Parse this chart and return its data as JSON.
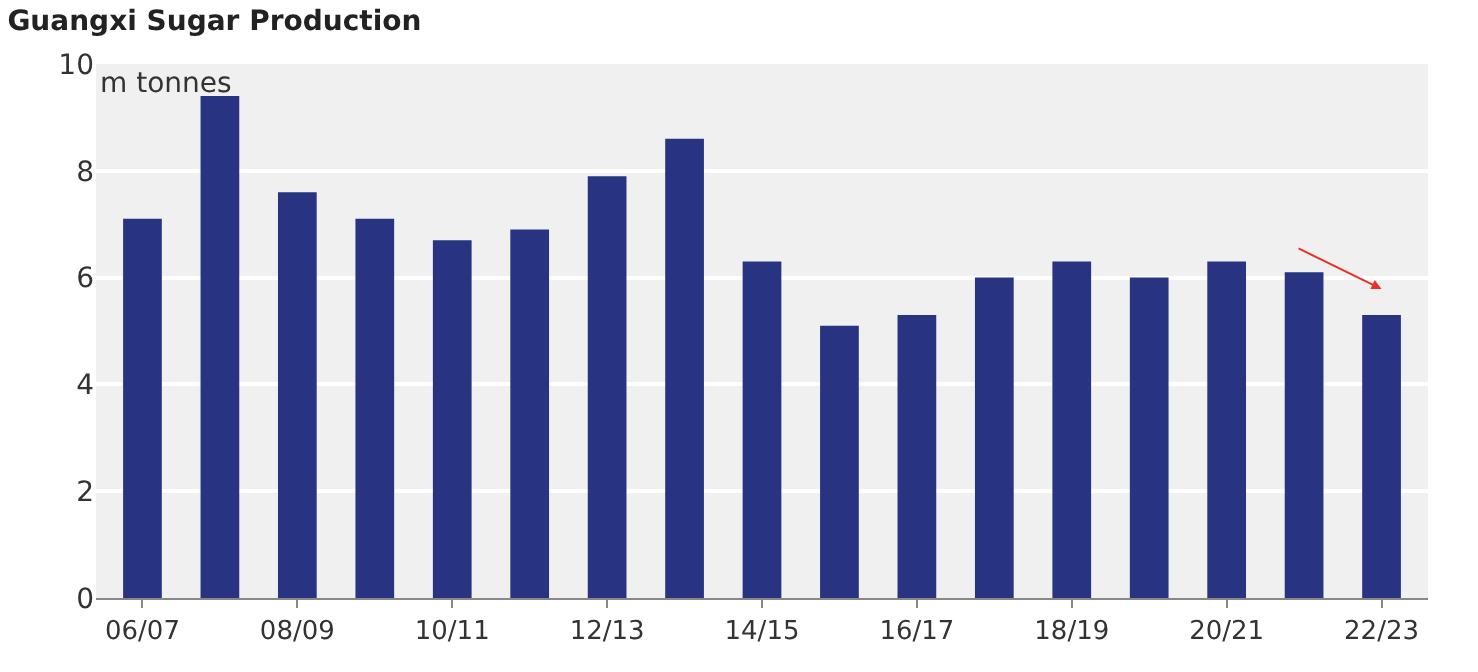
{
  "chart_data": {
    "type": "bar",
    "title": "Guangxi Sugar Production",
    "ylabel": "m tonnes",
    "categories": [
      "06/07",
      null,
      "08/09",
      null,
      "10/11",
      null,
      "12/13",
      null,
      "14/15",
      null,
      "16/17",
      null,
      "18/19",
      null,
      "20/21",
      null,
      "22/23"
    ],
    "values": [
      7.1,
      9.4,
      7.6,
      7.1,
      6.7,
      6.9,
      7.9,
      8.6,
      6.3,
      5.1,
      5.3,
      6.0,
      6.3,
      6.0,
      6.3,
      6.1,
      5.3
    ],
    "color": "#283381",
    "ylim": [
      0,
      10
    ],
    "yticks": [
      0,
      2,
      4,
      6,
      8,
      10
    ],
    "grid": "y"
  }
}
